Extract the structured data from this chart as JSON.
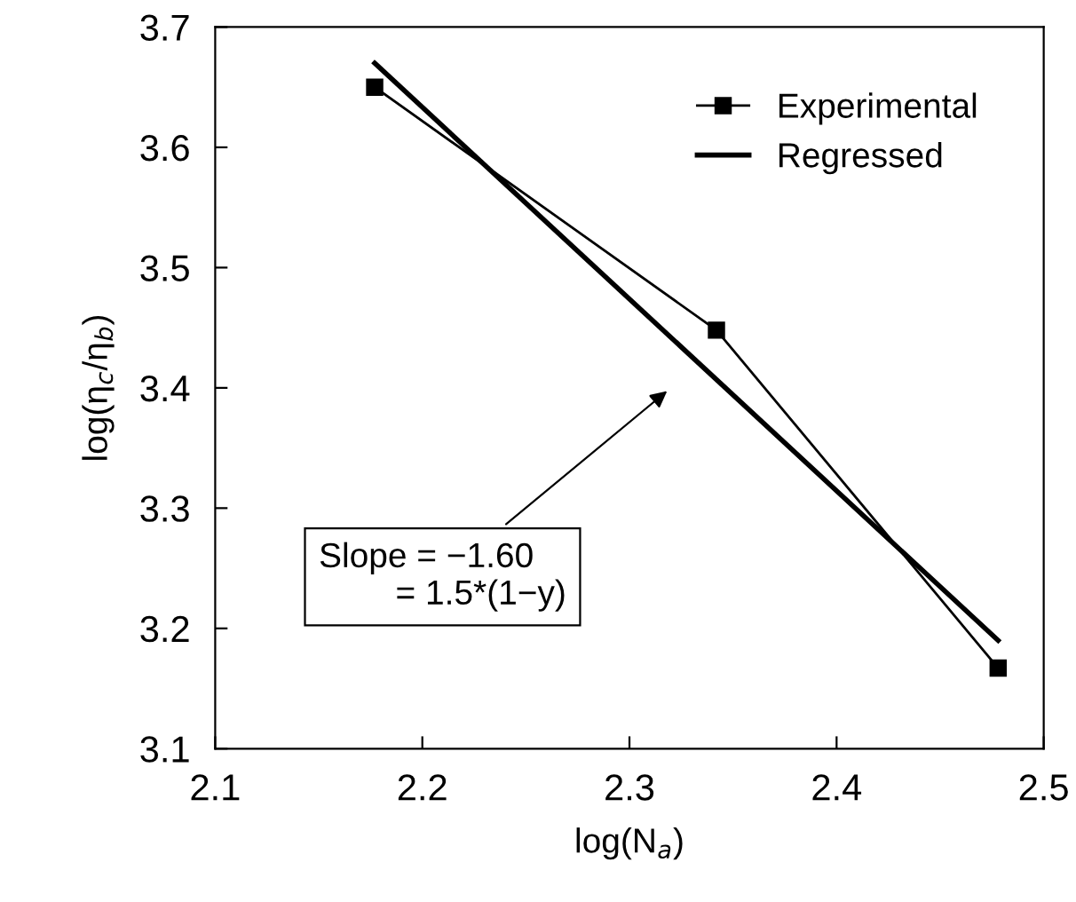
{
  "chart_data": {
    "type": "line",
    "xlabel": "log(N$_{a}$)",
    "ylabel": "log(η$_{c}$/η$_{b}$)",
    "xlim": [
      2.1,
      2.5
    ],
    "xticks": [
      2.1,
      2.2,
      2.3,
      2.4,
      2.5
    ],
    "ylim": [
      3.1,
      3.7
    ],
    "yticks": [
      3.1,
      3.2,
      3.3,
      3.4,
      3.5,
      3.6,
      3.7
    ],
    "grid": false,
    "legend": "top right",
    "series": [
      {
        "name": "Experimental",
        "color": "#000000",
        "x": [
          2.177,
          2.342,
          2.478
        ],
        "values": [
          3.65,
          3.448,
          3.167
        ],
        "marker": "square",
        "line_style": "solid"
      },
      {
        "name": "Regressed",
        "color": "#000000",
        "x": [
          2.177,
          2.478
        ],
        "values": [
          3.67,
          3.19
        ],
        "marker": "none",
        "line_style": "solid"
      }
    ],
    "annotations": [
      "Slope = −1.60\n        = 1.5*(1−y)"
    ]
  }
}
